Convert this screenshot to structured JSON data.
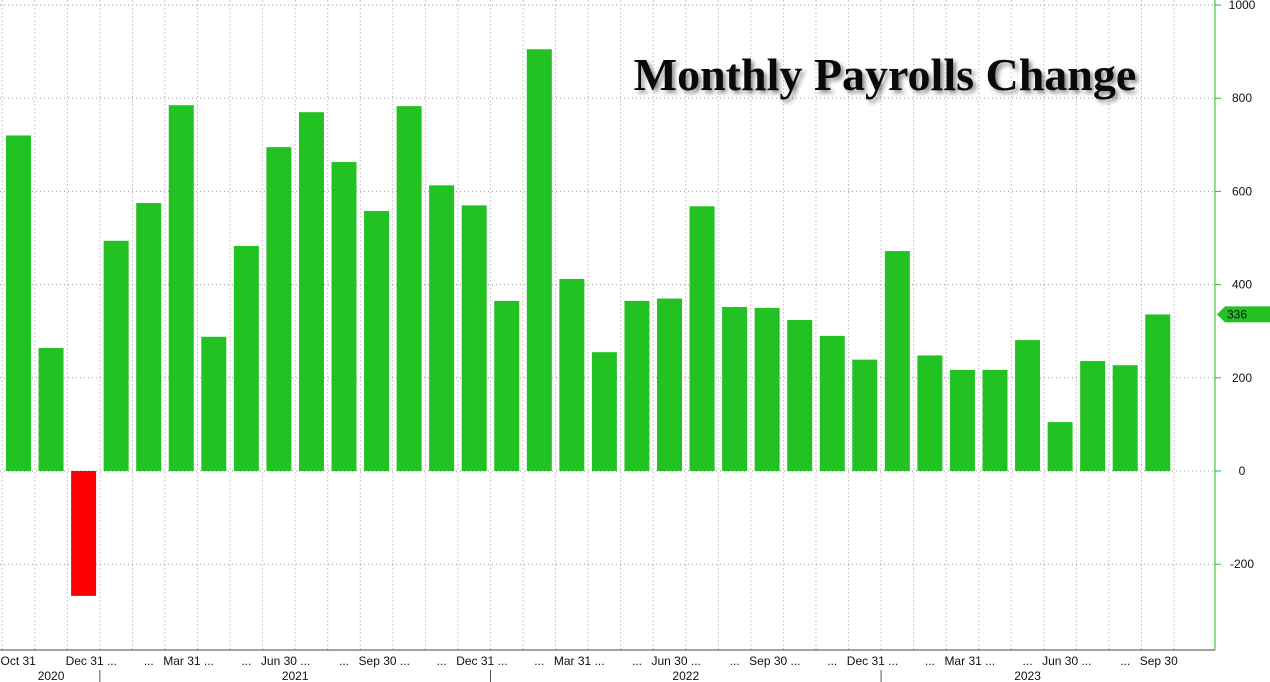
{
  "chart_data": {
    "type": "bar",
    "title": "Monthly Payrolls Change",
    "xlabel": "",
    "ylabel": "",
    "ylim": [
      -380,
      1010
    ],
    "yticks": [
      -200,
      0,
      200,
      400,
      600,
      800,
      1000
    ],
    "y_axis_position": "right",
    "grid": true,
    "categories": [
      "2020-10",
      "2020-11",
      "2020-12",
      "2021-01",
      "2021-02",
      "2021-03",
      "2021-04",
      "2021-05",
      "2021-06",
      "2021-07",
      "2021-08",
      "2021-09",
      "2021-10",
      "2021-11",
      "2021-12",
      "2022-01",
      "2022-02",
      "2022-03",
      "2022-04",
      "2022-05",
      "2022-06",
      "2022-07",
      "2022-08",
      "2022-09",
      "2022-10",
      "2022-11",
      "2022-12",
      "2023-01",
      "2023-02",
      "2023-03",
      "2023-04",
      "2023-05",
      "2023-06",
      "2023-07",
      "2023-08",
      "2023-09"
    ],
    "values": [
      720,
      264,
      -268,
      494,
      575,
      785,
      288,
      483,
      695,
      770,
      663,
      558,
      783,
      613,
      570,
      365,
      905,
      412,
      255,
      365,
      370,
      568,
      352,
      350,
      324,
      290,
      239,
      472,
      248,
      217,
      217,
      281,
      105,
      236,
      227,
      336
    ],
    "x_tick_labels": [
      {
        "label": "Oct 31",
        "index": 0
      },
      {
        "label": "Dec 31 ...",
        "index": 2
      },
      {
        "label": "...",
        "index": 4
      },
      {
        "label": "Mar 31 ...",
        "index": 5
      },
      {
        "label": "...",
        "index": 7
      },
      {
        "label": "Jun 30 ...",
        "index": 8
      },
      {
        "label": "...",
        "index": 10
      },
      {
        "label": "Sep 30 ...",
        "index": 11
      },
      {
        "label": "...",
        "index": 13
      },
      {
        "label": "Dec 31 ...",
        "index": 14
      },
      {
        "label": "...",
        "index": 16
      },
      {
        "label": "Mar 31 ...",
        "index": 17
      },
      {
        "label": "...",
        "index": 19
      },
      {
        "label": "Jun 30 ...",
        "index": 20
      },
      {
        "label": "...",
        "index": 22
      },
      {
        "label": "Sep 30 ...",
        "index": 23
      },
      {
        "label": "...",
        "index": 25
      },
      {
        "label": "Dec 31 ...",
        "index": 26
      },
      {
        "label": "...",
        "index": 28
      },
      {
        "label": "Mar 31 ...",
        "index": 29
      },
      {
        "label": "...",
        "index": 31
      },
      {
        "label": "Jun 30 ...",
        "index": 32
      },
      {
        "label": "...",
        "index": 34
      },
      {
        "label": "Sep 30",
        "index": 35
      }
    ],
    "year_labels": [
      {
        "label": "2020",
        "start": 0,
        "end": 2
      },
      {
        "label": "2021",
        "start": 3,
        "end": 14
      },
      {
        "label": "2022",
        "start": 15,
        "end": 26
      },
      {
        "label": "2023",
        "start": 27,
        "end": 35
      }
    ],
    "last_value_badge": "336",
    "colors": {
      "positive": "#22c222",
      "negative": "#ff0000",
      "axis": "#22c222",
      "badge": "#22c222"
    }
  }
}
